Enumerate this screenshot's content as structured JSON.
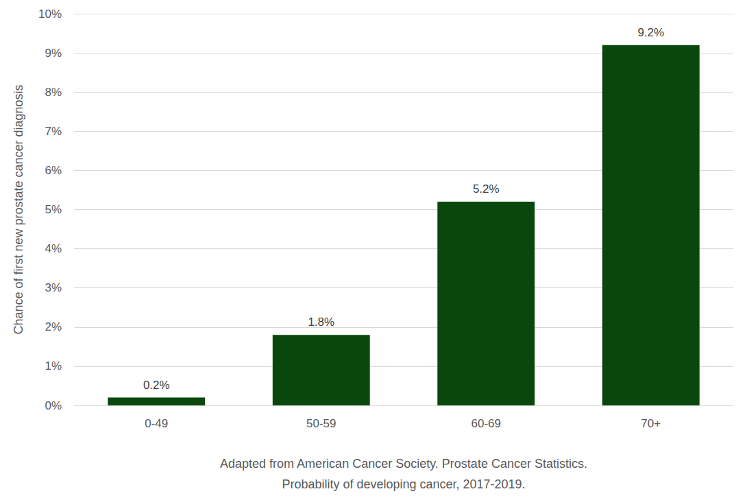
{
  "chart_data": {
    "type": "bar",
    "x_label": "Adapted from American Cancer Society. Prostate Cancer Statistics.\nProbability of developing cancer, 2017-2019.",
    "y_label": "Chance of first new prostate cancer diagnosis",
    "categories": [
      "0-49",
      "50-59",
      "60-69",
      "70+"
    ],
    "values": [
      0.2,
      1.8,
      5.2,
      9.2
    ],
    "value_labels": [
      "0.2%",
      "1.8%",
      "5.2%",
      "9.2%"
    ],
    "color": "#0a470c",
    "ylim": [
      0,
      10
    ],
    "yticks": [
      {
        "value": 0,
        "label": "0%"
      },
      {
        "value": 1,
        "label": "1%"
      },
      {
        "value": 2,
        "label": "2%"
      },
      {
        "value": 3,
        "label": "3%"
      },
      {
        "value": 4,
        "label": "4%"
      },
      {
        "value": 5,
        "label": "5%"
      },
      {
        "value": 6,
        "label": "6%"
      },
      {
        "value": 7,
        "label": "7%"
      },
      {
        "value": 8,
        "label": "8%"
      },
      {
        "value": 9,
        "label": "9%"
      },
      {
        "value": 10,
        "label": "10%"
      }
    ],
    "grid": true,
    "data_labels": true
  }
}
